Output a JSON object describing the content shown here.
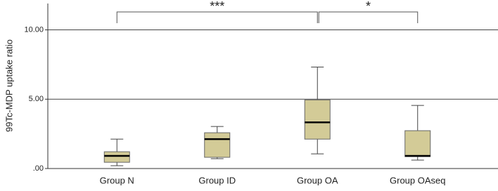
{
  "chart_data": {
    "type": "box",
    "y_label": "99Tc-MDP uptake ratio",
    "categories": [
      "Group N",
      "Group ID",
      "Group OA",
      "Group OAseq"
    ],
    "boxes": [
      {
        "min": 0.2,
        "q1": 0.45,
        "median": 0.91,
        "q3": 1.21,
        "max": 2.12
      },
      {
        "min": 0.71,
        "q1": 0.81,
        "median": 2.12,
        "q3": 2.58,
        "max": 3.03
      },
      {
        "min": 1.06,
        "q1": 2.12,
        "median": 3.33,
        "q3": 4.95,
        "max": 7.32
      },
      {
        "min": 0.61,
        "q1": 0.86,
        "median": 0.91,
        "q3": 2.73,
        "max": 4.55
      }
    ],
    "color": "#d3cb97",
    "ylim": [
      0,
      11.9
    ],
    "yticks": [
      {
        "value": 0,
        "label": ".00"
      },
      {
        "value": 5,
        "label": "5.00"
      },
      {
        "value": 10,
        "label": "10.00"
      }
    ],
    "grid": true,
    "comparisons": [
      {
        "groups": [
          "Group N",
          "Group OA"
        ],
        "label": "***"
      },
      {
        "groups": [
          "Group OA",
          "Group OAseq"
        ],
        "label": "*"
      }
    ]
  }
}
